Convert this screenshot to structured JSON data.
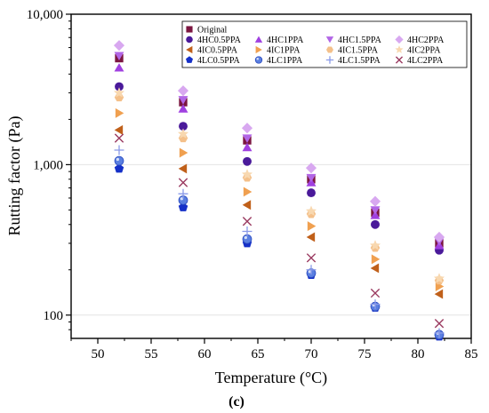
{
  "chart_data": {
    "type": "scatter",
    "xlabel": "Temperature (°C)",
    "ylabel": "Rutting factor (Pa)",
    "caption": "(c)",
    "x_ticks": [
      50,
      55,
      60,
      65,
      70,
      75,
      80,
      85
    ],
    "y_ticks": [
      {
        "value": 100,
        "label": "100"
      },
      {
        "value": 1000,
        "label": "1,000"
      },
      {
        "value": 10000,
        "label": "10,000"
      }
    ],
    "y_scale": "log",
    "xlim": [
      47.5,
      85
    ],
    "ylim": [
      70,
      10000
    ],
    "grid": true,
    "legend_position": "top-right",
    "x": [
      52,
      58,
      64,
      70,
      76,
      82
    ],
    "series": [
      {
        "name": "Original",
        "marker": "square",
        "color": "#7b1640",
        "values": [
          5100,
          2600,
          1450,
          800,
          480,
          300
        ]
      },
      {
        "name": "4HC0.5PPA",
        "marker": "circle",
        "color": "#4a1a9a",
        "values": [
          3300,
          1800,
          1050,
          650,
          400,
          270
        ]
      },
      {
        "name": "4HC1PPA",
        "marker": "triangle-up",
        "color": "#a040e0",
        "values": [
          4400,
          2350,
          1300,
          760,
          460,
          290
        ]
      },
      {
        "name": "4HC1.5PPA",
        "marker": "triangle-down",
        "color": "#b266e6",
        "values": [
          5300,
          2700,
          1500,
          820,
          500,
          310
        ]
      },
      {
        "name": "4HC2PPA",
        "marker": "diamond",
        "color": "#d8a8f0",
        "values": [
          6200,
          3100,
          1750,
          950,
          570,
          330
        ]
      },
      {
        "name": "4IC0.5PPA",
        "marker": "triangle-left",
        "color": "#c0601a",
        "values": [
          1700,
          940,
          540,
          330,
          205,
          138
        ]
      },
      {
        "name": "4IC1PPA",
        "marker": "triangle-right",
        "color": "#f0a050",
        "values": [
          2200,
          1200,
          660,
          390,
          235,
          155
        ]
      },
      {
        "name": "4IC1.5PPA",
        "marker": "hexagon",
        "color": "#f4c08a",
        "values": [
          2800,
          1500,
          820,
          470,
          280,
          170
        ]
      },
      {
        "name": "4IC2PPA",
        "marker": "star",
        "color": "#f8d8b0",
        "values": [
          3000,
          1600,
          860,
          490,
          290,
          175
        ]
      },
      {
        "name": "4LC0.5PPA",
        "marker": "pentagon",
        "color": "#1530c8",
        "values": [
          940,
          520,
          300,
          185,
          112,
          72
        ]
      },
      {
        "name": "4LC1PPA",
        "marker": "sphere",
        "color": "#5a7fe0",
        "values": [
          1060,
          580,
          320,
          190,
          114,
          74
        ]
      },
      {
        "name": "4LC1.5PPA",
        "marker": "plus",
        "color": "#8a9ae8",
        "values": [
          1250,
          640,
          360,
          200,
          118,
          76
        ]
      },
      {
        "name": "4LC2PPA",
        "marker": "x",
        "color": "#9a3a60",
        "values": [
          1500,
          760,
          420,
          240,
          140,
          88
        ]
      }
    ]
  }
}
